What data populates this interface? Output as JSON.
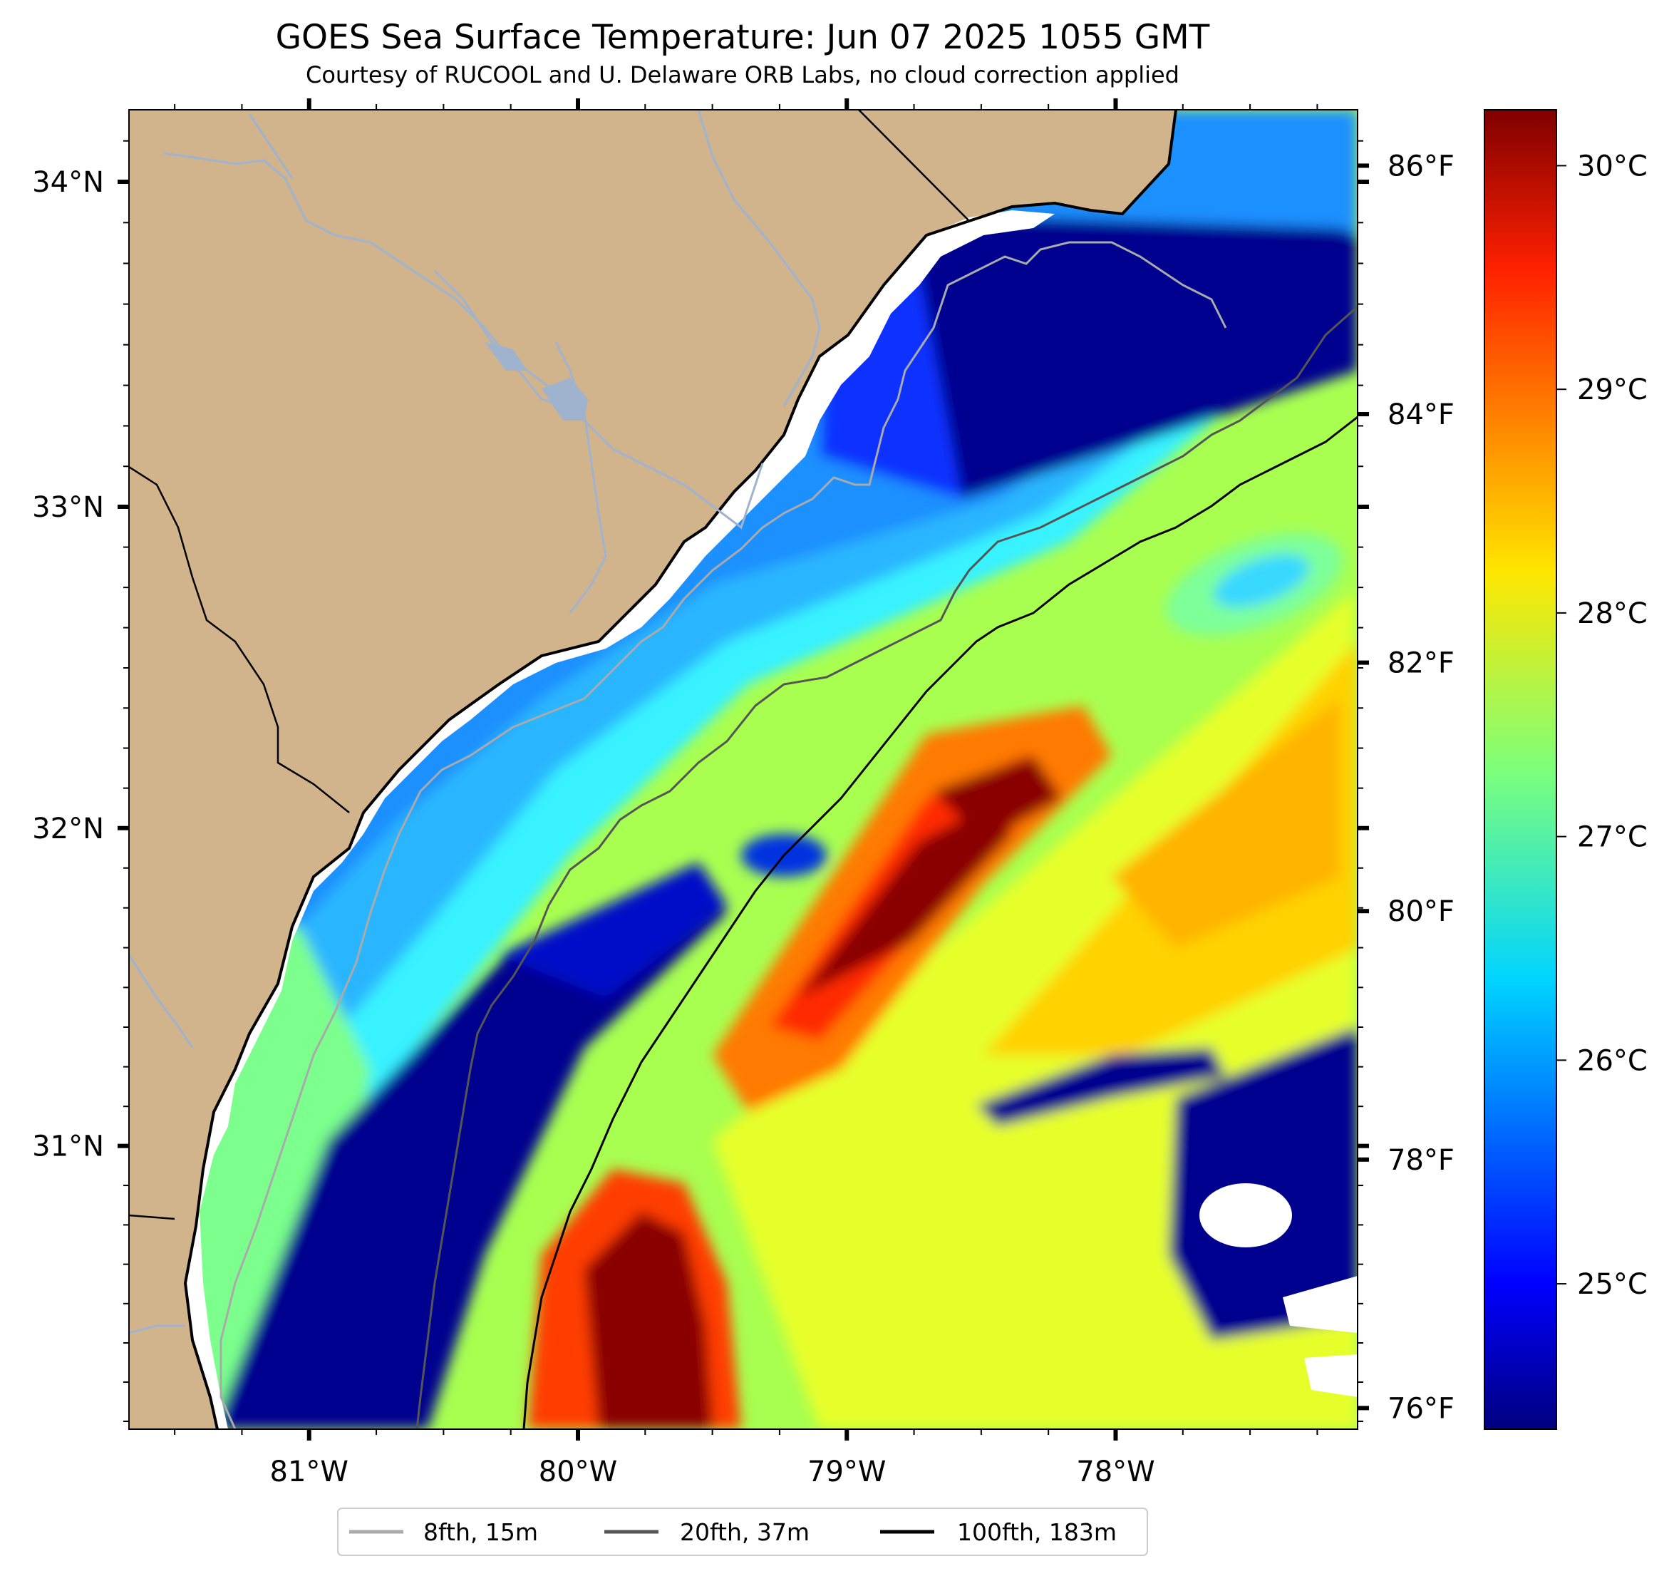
{
  "title": "GOES Sea Surface Temperature: Jun 07 2025 1055 GMT",
  "subtitle": "Courtesy of RUCOOL and U. Delaware ORB Labs, no cloud correction applied",
  "map": {
    "lon_range": [
      -81.67,
      -77.1
    ],
    "lat_range": [
      30.1,
      34.22
    ],
    "lon_ticks": [
      {
        "value": -81,
        "label": "81°W"
      },
      {
        "value": -80,
        "label": "80°W"
      },
      {
        "value": -79,
        "label": "79°W"
      },
      {
        "value": -78,
        "label": "78°W"
      }
    ],
    "lat_ticks": [
      {
        "value": 34,
        "label": "34°N"
      },
      {
        "value": 33,
        "label": "33°N"
      },
      {
        "value": 32,
        "label": "32°N"
      },
      {
        "value": 31,
        "label": "31°N"
      }
    ],
    "colors": {
      "land": "#d1b38c",
      "no_data": "#ffffff",
      "rivers": "#9fb3cf"
    }
  },
  "colorbar": {
    "colormap": "jet",
    "celsius_range": [
      24.35,
      30.25
    ],
    "celsius_ticks": [
      {
        "value": 25,
        "label": "25°C"
      },
      {
        "value": 26,
        "label": "26°C"
      },
      {
        "value": 27,
        "label": "27°C"
      },
      {
        "value": 28,
        "label": "28°C"
      },
      {
        "value": 29,
        "label": "29°C"
      },
      {
        "value": 30,
        "label": "30°C"
      }
    ],
    "fahrenheit_ticks": [
      {
        "value": 76,
        "label": "76°F"
      },
      {
        "value": 78,
        "label": "78°F"
      },
      {
        "value": 80,
        "label": "80°F"
      },
      {
        "value": 82,
        "label": "82°F"
      },
      {
        "value": 84,
        "label": "84°F"
      },
      {
        "value": 86,
        "label": "86°F"
      }
    ]
  },
  "legend": [
    {
      "label": "8fth, 15m",
      "color": "#aaaaaa"
    },
    {
      "label": "20fth, 37m",
      "color": "#555555"
    },
    {
      "label": "100fth, 183m",
      "color": "#000000"
    }
  ]
}
